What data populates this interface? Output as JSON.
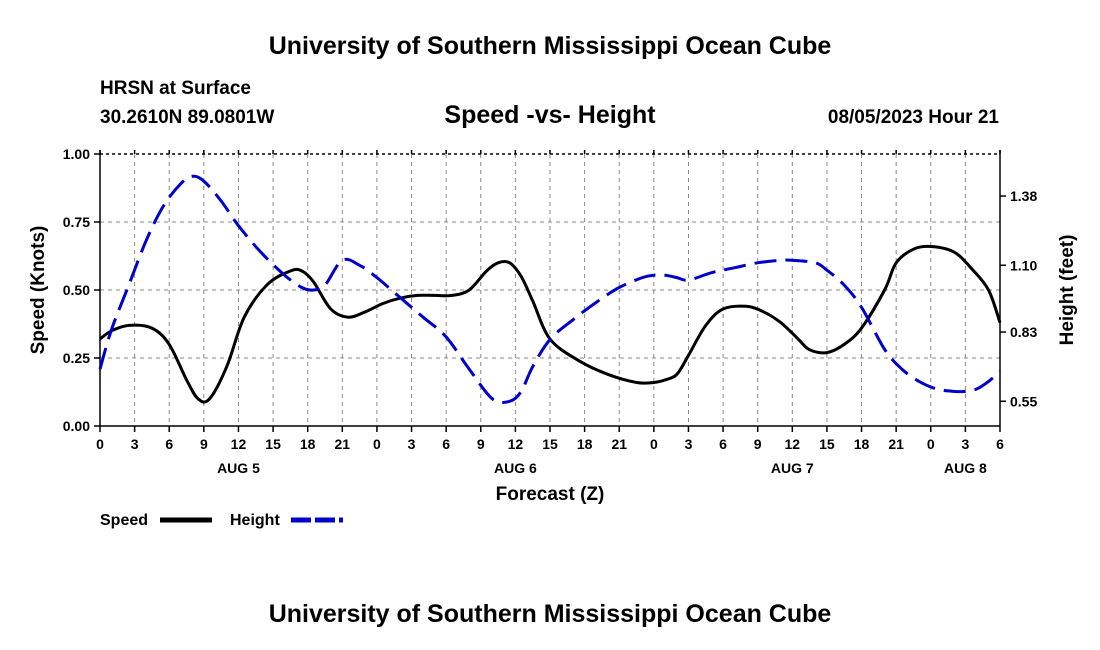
{
  "page": {
    "title_top": "University of Southern Mississippi Ocean Cube",
    "title_bottom": "University of Southern Mississippi Ocean Cube",
    "station": "HRSN at Surface",
    "coords": "30.2610N  89.0801W",
    "date": "08/05/2023 Hour 21"
  },
  "chart_data": {
    "type": "line",
    "title": "Speed -vs- Height",
    "xlabel": "Forecast (Z)",
    "ylabel_left": "Speed (Knots)",
    "ylabel_right": "Height (feet)",
    "x_range": [
      0,
      78
    ],
    "x_tick_step": 3,
    "x_ticks": [
      "0",
      "3",
      "6",
      "9",
      "12",
      "15",
      "18",
      "21",
      "0",
      "3",
      "6",
      "9",
      "12",
      "15",
      "18",
      "21",
      "0",
      "3",
      "6",
      "9",
      "12",
      "15",
      "18",
      "21",
      "0",
      "3",
      "6"
    ],
    "date_labels": [
      {
        "label": "AUG 5",
        "hour": 12
      },
      {
        "label": "AUG 6",
        "hour": 36
      },
      {
        "label": "AUG 7",
        "hour": 60
      },
      {
        "label": "AUG 8",
        "hour": 75
      }
    ],
    "ylim_left": [
      0,
      1
    ],
    "y_ticks_left": [
      "0.00",
      "0.25",
      "0.50",
      "0.75",
      "1.00"
    ],
    "ylim_right": [
      0.45,
      1.55
    ],
    "y_ticks_right": [
      {
        "label": "0.55",
        "value": 0.55
      },
      {
        "label": "0.83",
        "value": 0.83
      },
      {
        "label": "1.10",
        "value": 1.1
      },
      {
        "label": "1.38",
        "value": 1.38
      }
    ],
    "grid": true,
    "series": [
      {
        "name": "Speed",
        "axis": "left",
        "color": "#000000",
        "dash": "solid",
        "x": [
          0,
          1,
          2.5,
          4.5,
          6,
          7.5,
          8.5,
          9.5,
          11,
          12.5,
          14.5,
          16.5,
          17.5,
          18.5,
          20,
          21.5,
          23,
          24.5,
          26,
          27.5,
          29,
          30.5,
          32,
          33.5,
          34.5,
          35.5,
          36.5,
          37.5,
          39,
          41.5,
          44,
          46.5,
          48,
          49,
          50,
          51,
          52.5,
          54,
          56,
          57.5,
          59,
          60.5,
          61.5,
          63,
          64.5,
          66,
          68,
          69,
          70.5,
          72,
          74,
          75.5,
          77,
          78
        ],
        "values": [
          0.32,
          0.35,
          0.37,
          0.36,
          0.3,
          0.17,
          0.1,
          0.1,
          0.22,
          0.4,
          0.52,
          0.57,
          0.57,
          0.53,
          0.43,
          0.4,
          0.42,
          0.45,
          0.47,
          0.48,
          0.48,
          0.48,
          0.5,
          0.57,
          0.6,
          0.6,
          0.55,
          0.46,
          0.32,
          0.24,
          0.19,
          0.16,
          0.16,
          0.17,
          0.19,
          0.26,
          0.37,
          0.43,
          0.44,
          0.42,
          0.38,
          0.32,
          0.28,
          0.27,
          0.3,
          0.36,
          0.5,
          0.6,
          0.65,
          0.66,
          0.64,
          0.58,
          0.5,
          0.38
        ]
      },
      {
        "name": "Height",
        "axis": "right",
        "color": "#0000cc",
        "dash": "dashed",
        "x": [
          0,
          1,
          2.5,
          4,
          5.5,
          7,
          8,
          9,
          10.5,
          12,
          14,
          16,
          17.5,
          18.5,
          19.5,
          21,
          22.5,
          24,
          26,
          28,
          30,
          32,
          34,
          35.5,
          36.5,
          37.5,
          39,
          41,
          43,
          45,
          47,
          48,
          49,
          50,
          51,
          53,
          55,
          57,
          59,
          60,
          62,
          63,
          64.5,
          66,
          68,
          69.5,
          71,
          72.5,
          74,
          75,
          76,
          77,
          78
        ],
        "values": [
          0.68,
          0.84,
          1.02,
          1.2,
          1.34,
          1.43,
          1.46,
          1.44,
          1.36,
          1.26,
          1.15,
          1.06,
          1.01,
          1.0,
          1.02,
          1.12,
          1.1,
          1.05,
          0.97,
          0.89,
          0.81,
          0.68,
          0.56,
          0.55,
          0.59,
          0.69,
          0.8,
          0.88,
          0.95,
          1.01,
          1.05,
          1.06,
          1.06,
          1.05,
          1.04,
          1.07,
          1.09,
          1.11,
          1.12,
          1.12,
          1.11,
          1.08,
          1.02,
          0.93,
          0.76,
          0.68,
          0.63,
          0.6,
          0.59,
          0.59,
          0.6,
          0.63,
          0.67
        ]
      }
    ]
  }
}
